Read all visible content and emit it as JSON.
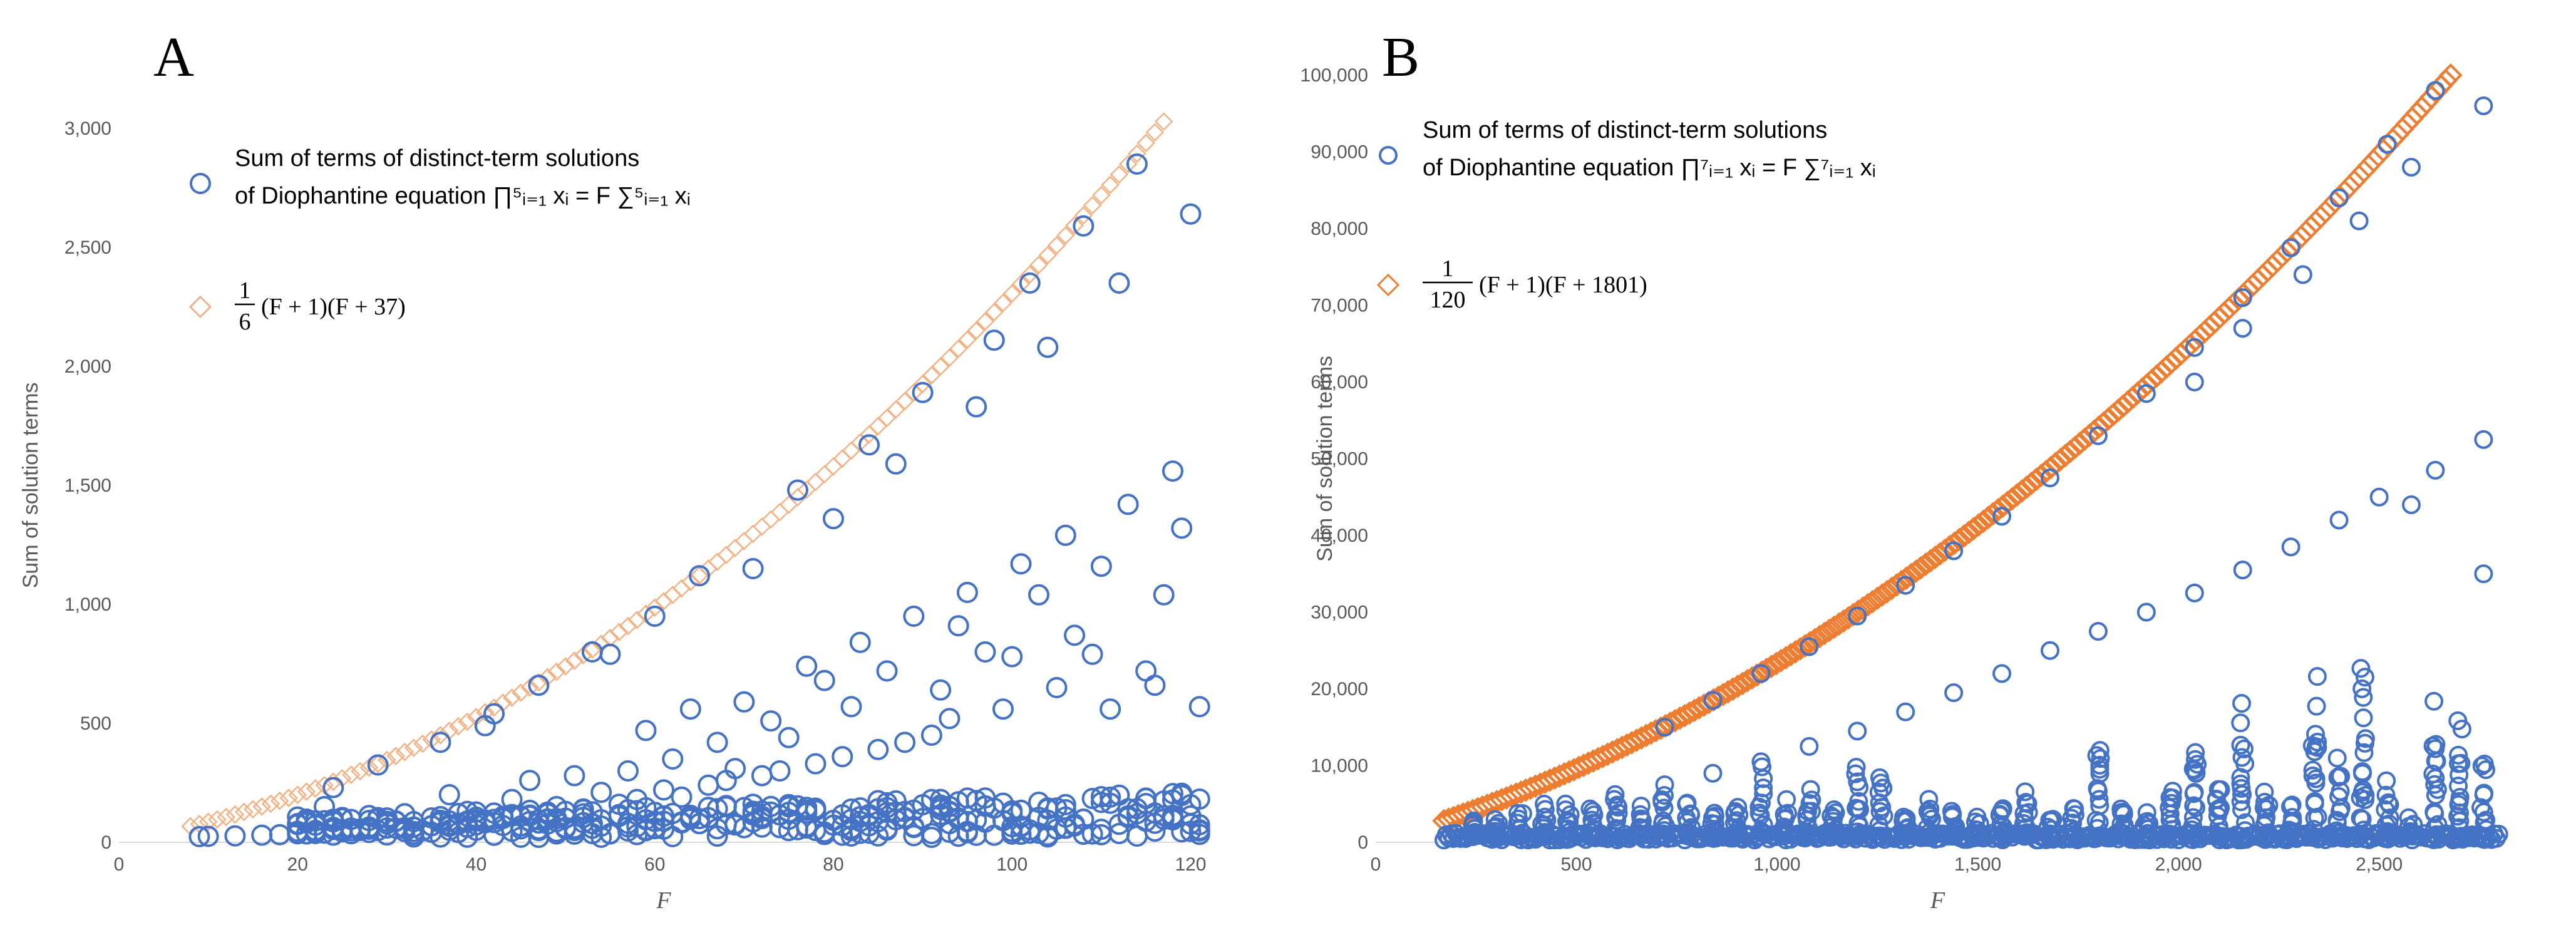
{
  "chart_data": [
    {
      "panel": "A",
      "type": "scatter",
      "xlabel": "F",
      "ylabel": "Sum of solution terms",
      "xlim": [
        0,
        122
      ],
      "ylim": [
        0,
        3000
      ],
      "xticks": [
        0,
        20,
        40,
        60,
        80,
        100,
        120
      ],
      "yticks": [
        0,
        500,
        1000,
        1500,
        2000,
        2500,
        3000
      ],
      "xtick_labels": [
        "0",
        "20",
        "40",
        "60",
        "80",
        "100",
        "120"
      ],
      "ytick_labels": [
        "0",
        "500",
        "1,000",
        "1,500",
        "2,000",
        "2,500",
        "3,000"
      ],
      "legend_position": "top-left",
      "series": [
        {
          "name": "Sum of terms of distinct-term solutions",
          "legend_line2": "of Diophantine equation ∏⁵ᵢ₌₁ xᵢ = F ∑⁵ᵢ₌₁ xᵢ",
          "marker": "circle-open",
          "color": "#4472C4",
          "points": [
            [
              9,
              24
            ],
            [
              10,
              25
            ],
            [
              13,
              27
            ],
            [
              16,
              30
            ],
            [
              18,
              32
            ],
            [
              20,
              36
            ],
            [
              22,
              40
            ],
            [
              23,
              150
            ],
            [
              24,
              230
            ],
            [
              25,
              44
            ],
            [
              26,
              48
            ],
            [
              28,
              55
            ],
            [
              29,
              325
            ],
            [
              30,
              60
            ],
            [
              31,
              90
            ],
            [
              32,
              120
            ],
            [
              33,
              64
            ],
            [
              35,
              70
            ],
            [
              36,
              420
            ],
            [
              37,
              200
            ],
            [
              38,
              80
            ],
            [
              39,
              130
            ],
            [
              40,
              90
            ],
            [
              41,
              490
            ],
            [
              42,
              540
            ],
            [
              43,
              100
            ],
            [
              44,
              180
            ],
            [
              45,
              110
            ],
            [
              46,
              260
            ],
            [
              47,
              660
            ],
            [
              48,
              120
            ],
            [
              49,
              150
            ],
            [
              50,
              130
            ],
            [
              51,
              280
            ],
            [
              52,
              140
            ],
            [
              53,
              800
            ],
            [
              54,
              210
            ],
            [
              55,
              790
            ],
            [
              56,
              160
            ],
            [
              57,
              300
            ],
            [
              58,
              180
            ],
            [
              59,
              470
            ],
            [
              60,
              950
            ],
            [
              61,
              220
            ],
            [
              62,
              350
            ],
            [
              63,
              190
            ],
            [
              64,
              560
            ],
            [
              65,
              1120
            ],
            [
              66,
              240
            ],
            [
              67,
              420
            ],
            [
              68,
              260
            ],
            [
              69,
              310
            ],
            [
              70,
              590
            ],
            [
              71,
              1150
            ],
            [
              72,
              280
            ],
            [
              73,
              510
            ],
            [
              74,
              300
            ],
            [
              75,
              440
            ],
            [
              76,
              1480
            ],
            [
              77,
              740
            ],
            [
              78,
              330
            ],
            [
              79,
              680
            ],
            [
              80,
              1360
            ],
            [
              81,
              360
            ],
            [
              82,
              570
            ],
            [
              83,
              840
            ],
            [
              84,
              1670
            ],
            [
              85,
              390
            ],
            [
              86,
              720
            ],
            [
              87,
              1590
            ],
            [
              88,
              420
            ],
            [
              89,
              950
            ],
            [
              90,
              1890
            ],
            [
              91,
              450
            ],
            [
              92,
              640
            ],
            [
              93,
              520
            ],
            [
              94,
              910
            ],
            [
              95,
              1050
            ],
            [
              96,
              1830
            ],
            [
              97,
              800
            ],
            [
              98,
              2110
            ],
            [
              99,
              560
            ],
            [
              100,
              780
            ],
            [
              101,
              1170
            ],
            [
              102,
              2350
            ],
            [
              103,
              1040
            ],
            [
              104,
              2080
            ],
            [
              105,
              650
            ],
            [
              106,
              1290
            ],
            [
              107,
              870
            ],
            [
              108,
              2590
            ],
            [
              109,
              790
            ],
            [
              110,
              1160
            ],
            [
              111,
              560
            ],
            [
              112,
              2350
            ],
            [
              113,
              1420
            ],
            [
              114,
              2850
            ],
            [
              115,
              720
            ],
            [
              116,
              660
            ],
            [
              117,
              1040
            ],
            [
              118,
              1560
            ],
            [
              119,
              1320
            ],
            [
              120,
              2640
            ],
            [
              121,
              570
            ]
          ],
          "baseline_cluster": "many points between 0 and 150 for F 20–121"
        },
        {
          "name": "1/6 (F + 1)(F + 37)",
          "formula_fraction": "1",
          "formula_denominator": "6",
          "formula_rest": "(F + 1)(F + 37)",
          "marker": "diamond-open",
          "color": "#F4B183",
          "function": "(F+1)*(F+37)/6",
          "x_range": [
            8,
            117
          ]
        }
      ]
    },
    {
      "panel": "B",
      "type": "scatter",
      "xlabel": "F",
      "ylabel": "Sum of solution terms",
      "xlim": [
        0,
        2800
      ],
      "ylim": [
        0,
        100000
      ],
      "xticks": [
        0,
        500,
        1000,
        1500,
        2000,
        2500
      ],
      "yticks": [
        0,
        10000,
        20000,
        30000,
        40000,
        50000,
        60000,
        70000,
        80000,
        90000,
        100000
      ],
      "xtick_labels": [
        "0",
        "500",
        "1,000",
        "1,500",
        "2,000",
        "2,500"
      ],
      "ytick_labels": [
        "0",
        "10,000",
        "20,000",
        "30,000",
        "40,000",
        "50,000",
        "60,000",
        "70,000",
        "80,000",
        "90,000",
        "100,000"
      ],
      "legend_position": "top-left",
      "series": [
        {
          "name": "Sum of terms of distinct-term solutions",
          "legend_line2": "of Diophantine equation ∏⁷ᵢ₌₁ xᵢ = F ∑⁷ᵢ₌₁ xᵢ",
          "marker": "circle-open",
          "color": "#4472C4",
          "points": [
            [
              720,
              15000
            ],
            [
              840,
              18500
            ],
            [
              960,
              22000
            ],
            [
              1080,
              25500
            ],
            [
              1200,
              29500
            ],
            [
              1320,
              33500
            ],
            [
              1440,
              38000
            ],
            [
              1560,
              42500
            ],
            [
              1680,
              47500
            ],
            [
              1800,
              53000
            ],
            [
              1920,
              58500
            ],
            [
              2040,
              64500
            ],
            [
              2160,
              71000
            ],
            [
              2280,
              77500
            ],
            [
              2400,
              84000
            ],
            [
              2520,
              91000
            ],
            [
              2640,
              98000
            ],
            [
              2760,
              96000
            ],
            [
              2580,
              88000
            ],
            [
              2450,
              81000
            ],
            [
              2310,
              74000
            ],
            [
              2160,
              67000
            ],
            [
              2040,
              60000
            ],
            [
              2500,
              45000
            ],
            [
              2640,
              48500
            ],
            [
              2760,
              52500
            ],
            [
              2400,
              42000
            ],
            [
              2580,
              44000
            ],
            [
              2160,
              35500
            ],
            [
              2760,
              35000
            ],
            [
              2280,
              38500
            ],
            [
              2040,
              32500
            ],
            [
              1920,
              30000
            ],
            [
              1800,
              27500
            ],
            [
              1680,
              25000
            ],
            [
              1560,
              22000
            ],
            [
              1440,
              19500
            ],
            [
              1320,
              17000
            ],
            [
              1200,
              14500
            ],
            [
              1080,
              12500
            ],
            [
              960,
              10500
            ],
            [
              840,
              9000
            ],
            [
              720,
              7500
            ]
          ],
          "baseline_cluster": "dense band near 0 from F 170 to 2800 with vertical spikes at multiples of 120"
        },
        {
          "name": "1/120 (F + 1)(F + 1801)",
          "formula_fraction": "1",
          "formula_denominator": "120",
          "formula_rest": "(F + 1)(F + 1801)",
          "marker": "diamond-open",
          "color": "#ED7D31",
          "function": "(F+1)*(F+1801)/120",
          "x_range": [
            170,
            2680
          ]
        }
      ]
    }
  ]
}
